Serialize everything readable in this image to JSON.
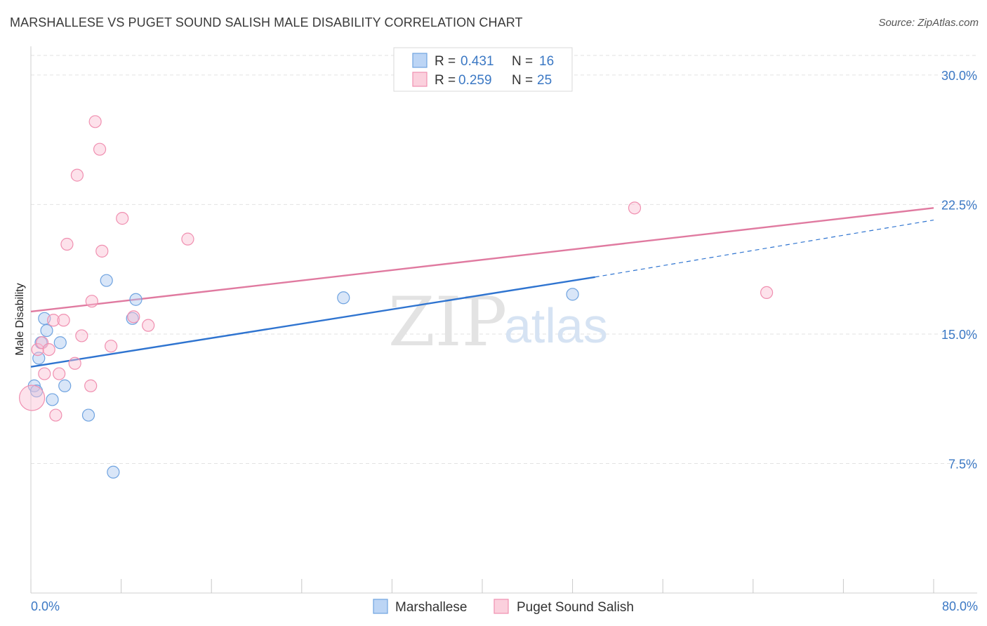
{
  "title": "MARSHALLESE VS PUGET SOUND SALISH MALE DISABILITY CORRELATION CHART",
  "source": "Source: ZipAtlas.com",
  "watermark": {
    "zip": "ZIP",
    "atlas": "atlas"
  },
  "legend": [
    {
      "r_label": "R =",
      "r_value": "0.431",
      "n_label": "N =",
      "n_value": "16"
    },
    {
      "r_label": "R =",
      "r_value": "0.259",
      "n_label": "N =",
      "n_value": "25"
    }
  ],
  "colors": {
    "marshallese": "#6fa3e0",
    "puget": "#f08fb0",
    "marshallese_line": "#2f74d0",
    "puget_line": "#e07aa0",
    "tick": "#3b78c4"
  },
  "chart_data": {
    "type": "scatter",
    "title": "MARSHALLESE VS PUGET SOUND SALISH MALE DISABILITY CORRELATION CHART",
    "xlabel": "",
    "ylabel": "Male Disability",
    "xlim": [
      0,
      80
    ],
    "ylim": [
      0,
      31.5
    ],
    "x_tick_labels": [
      "0.0%",
      "80.0%"
    ],
    "y_ticks": [
      7.5,
      15.0,
      22.5,
      30.0
    ],
    "y_tick_labels": [
      "7.5%",
      "15.0%",
      "22.5%",
      "30.0%"
    ],
    "grid": true,
    "legend_position": "top-center",
    "series": [
      {
        "name": "Marshallese",
        "r": 0.431,
        "n": 16,
        "points": [
          [
            0.3,
            12.0
          ],
          [
            0.5,
            11.7
          ],
          [
            0.7,
            13.6
          ],
          [
            0.9,
            14.5
          ],
          [
            1.2,
            15.9
          ],
          [
            1.4,
            15.2
          ],
          [
            1.9,
            11.2
          ],
          [
            2.6,
            14.5
          ],
          [
            3.0,
            12.0
          ],
          [
            5.1,
            10.3
          ],
          [
            6.7,
            18.1
          ],
          [
            7.3,
            7.0
          ],
          [
            9.0,
            15.9
          ],
          [
            9.3,
            17.0
          ],
          [
            27.7,
            17.1
          ],
          [
            48.0,
            17.3
          ]
        ],
        "trend": {
          "x0": 0,
          "y0": 13.1,
          "x1": 50,
          "y1": 18.3,
          "dashed_to_x": 80,
          "dashed_to_y": 21.6
        }
      },
      {
        "name": "Puget Sound Salish",
        "r": 0.259,
        "n": 25,
        "points": [
          [
            0.1,
            11.3
          ],
          [
            0.6,
            14.1
          ],
          [
            1.0,
            14.5
          ],
          [
            1.2,
            12.7
          ],
          [
            1.6,
            14.1
          ],
          [
            2.0,
            15.8
          ],
          [
            2.2,
            10.3
          ],
          [
            2.5,
            12.7
          ],
          [
            2.9,
            15.8
          ],
          [
            3.2,
            20.2
          ],
          [
            3.9,
            13.3
          ],
          [
            4.1,
            24.2
          ],
          [
            4.5,
            14.9
          ],
          [
            5.3,
            12.0
          ],
          [
            5.4,
            16.9
          ],
          [
            5.7,
            27.3
          ],
          [
            6.1,
            25.7
          ],
          [
            6.3,
            19.8
          ],
          [
            7.1,
            14.3
          ],
          [
            8.1,
            21.7
          ],
          [
            9.1,
            16.0
          ],
          [
            10.4,
            15.5
          ],
          [
            13.9,
            20.5
          ],
          [
            53.5,
            22.3
          ],
          [
            65.2,
            17.4
          ]
        ],
        "trend": {
          "x0": 0,
          "y0": 16.3,
          "x1": 80,
          "y1": 22.3
        }
      }
    ]
  },
  "bottom_legend": [
    "Marshallese",
    "Puget Sound Salish"
  ]
}
